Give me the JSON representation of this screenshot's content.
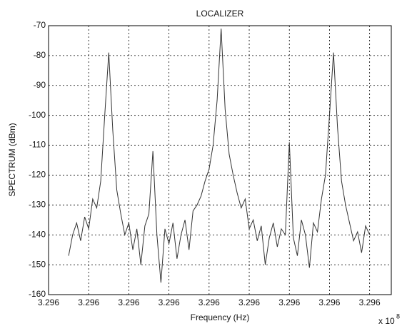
{
  "chart_data": {
    "type": "line",
    "title": "LOCALIZER",
    "x_label": "Frequency (Hz)",
    "y_label": "SPECTRUM (dBm)",
    "x_multiplier": "x 10",
    "x_exponent": 8,
    "x": [
      329599825,
      329599830,
      329599835,
      329599840,
      329599845,
      329599850,
      329599855,
      329599860,
      329599865,
      329599870,
      329599875,
      329599880,
      329599885,
      329599890,
      329599895,
      329599900,
      329599905,
      329599910,
      329599915,
      329599920,
      329599925,
      329599930,
      329599935,
      329599940,
      329599945,
      329599950,
      329599955,
      329599960,
      329599965,
      329599970,
      329599975,
      329599980,
      329599985,
      329599990,
      329599995,
      329600000,
      329600005,
      329600010,
      329600015,
      329600020,
      329600025,
      329600030,
      329600035,
      329600040,
      329600045,
      329600050,
      329600055,
      329600060,
      329600065,
      329600070,
      329600075,
      329600080,
      329600085,
      329600090,
      329600095,
      329600100,
      329600105,
      329600110,
      329600115,
      329600120,
      329600125,
      329600130,
      329600135,
      329600140,
      329600145,
      329600150,
      329600155,
      329600160,
      329600165,
      329600170,
      329600175,
      329600180,
      329600185,
      329600190,
      329600195,
      329600200
    ],
    "values": [
      -147,
      -140,
      -136,
      -142,
      -134,
      -138,
      -128,
      -131,
      -122,
      -100,
      -79,
      -105,
      -125,
      -133,
      -140,
      -136,
      -145,
      -138,
      -150,
      -137,
      -133,
      -112,
      -140,
      -156,
      -138,
      -143,
      -136,
      -148,
      -140,
      -135,
      -145,
      -132,
      -130,
      -127,
      -122,
      -118,
      -110,
      -95,
      -71,
      -98,
      -113,
      -120,
      -126,
      -131,
      -128,
      -138,
      -135,
      -142,
      -137,
      -150,
      -141,
      -136,
      -144,
      -138,
      -140,
      -109,
      -141,
      -147,
      -135,
      -140,
      -151,
      -136,
      -139,
      -128,
      -120,
      -100,
      -79,
      -104,
      -122,
      -130,
      -136,
      -142,
      -139,
      -146,
      -137,
      -140
    ],
    "color": "#333333",
    "xlim": [
      329599800,
      329600227
    ],
    "xticks": [
      {
        "value": 329599800,
        "label": "3.296"
      },
      {
        "value": 329599850,
        "label": "3.296"
      },
      {
        "value": 329599900,
        "label": "3.296"
      },
      {
        "value": 329599950,
        "label": "3.296"
      },
      {
        "value": 329600000,
        "label": "3.296"
      },
      {
        "value": 329600050,
        "label": "3.296"
      },
      {
        "value": 329600100,
        "label": "3.296"
      },
      {
        "value": 329600150,
        "label": "3.296"
      },
      {
        "value": 329600200,
        "label": "3.296"
      }
    ],
    "ylim": [
      -160,
      -70
    ],
    "yticks": [
      -160,
      -150,
      -140,
      -130,
      -120,
      -110,
      -100,
      -90,
      -80,
      -70
    ],
    "grid": true
  }
}
